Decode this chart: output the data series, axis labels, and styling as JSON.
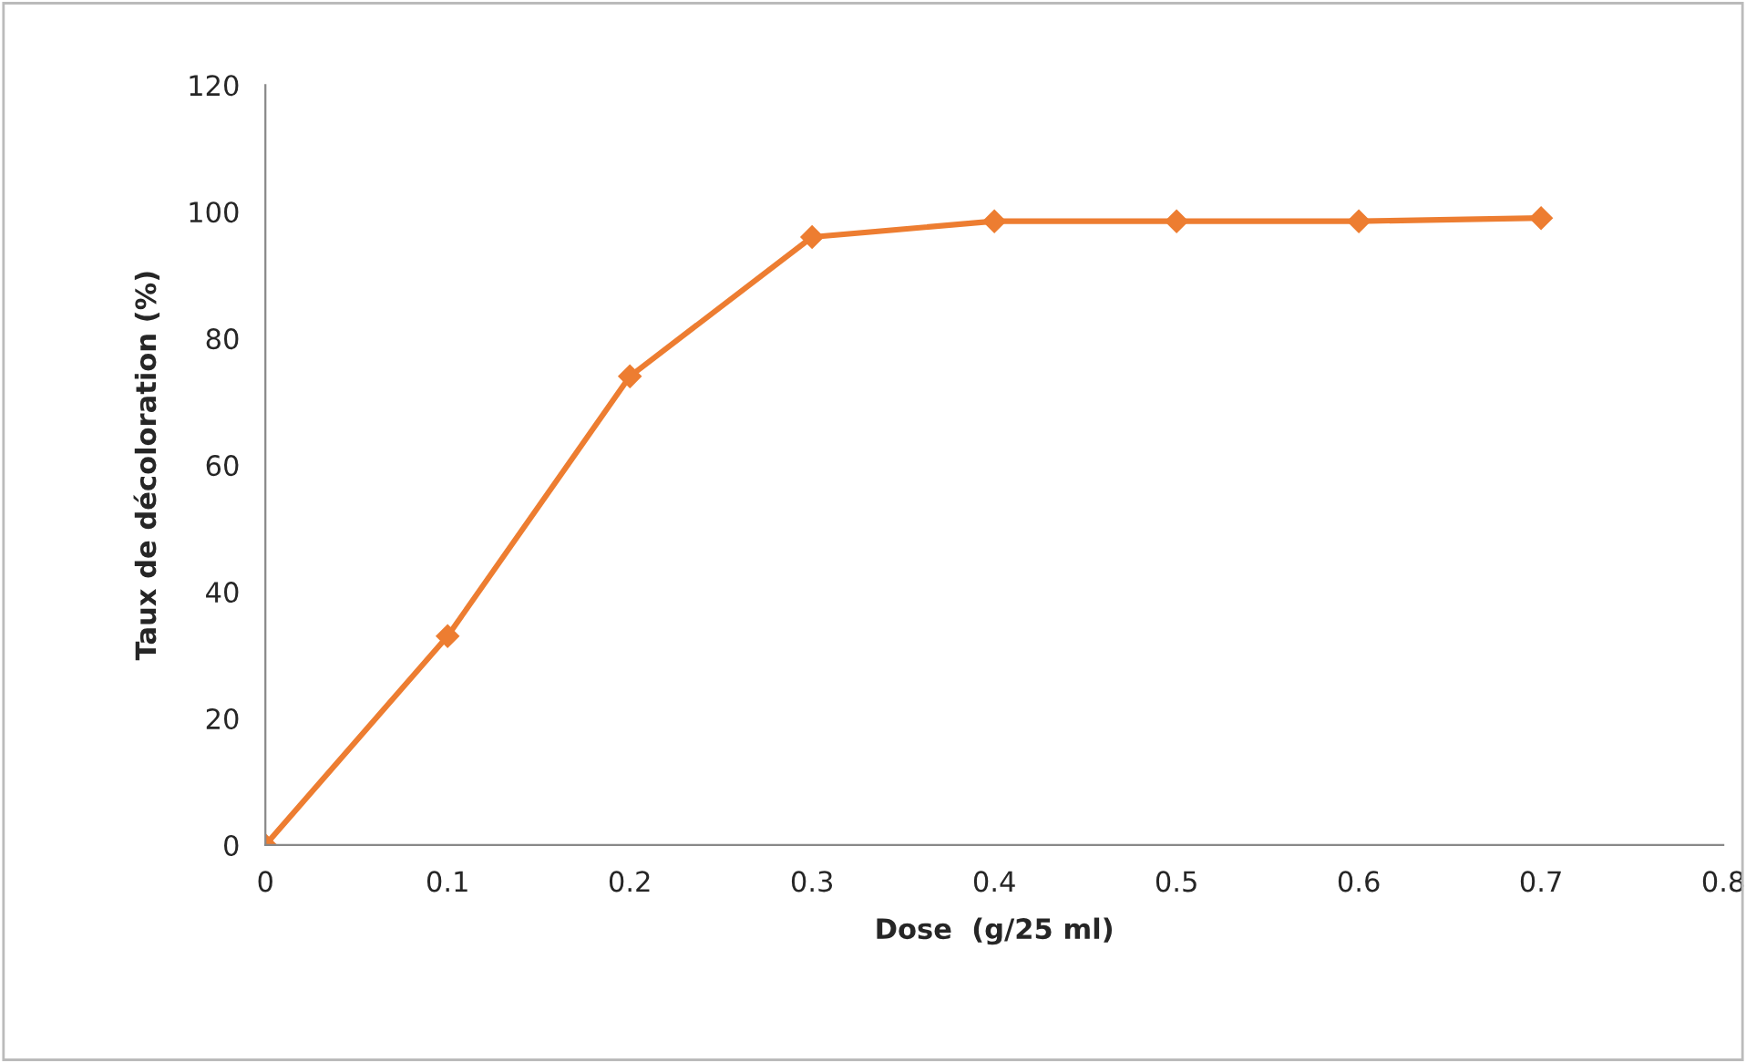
{
  "chart_data": {
    "type": "line",
    "xlabel": "Dose  (g/25 ml)",
    "ylabel": "Taux de décoloration (%)",
    "x": [
      0,
      0.1,
      0.2,
      0.3,
      0.4,
      0.5,
      0.6,
      0.7
    ],
    "series": [
      {
        "color": "#ed7d31",
        "values": [
          0,
          33,
          74,
          96,
          98.5,
          98.5,
          98.5,
          99
        ]
      }
    ],
    "xlim": [
      0,
      0.8
    ],
    "xticks": [
      0,
      0.1,
      0.2,
      0.3,
      0.4,
      0.5,
      0.6,
      0.7,
      0.8
    ],
    "ylim": [
      0,
      120
    ],
    "yticks": [
      0,
      20,
      40,
      60,
      80,
      100,
      120
    ],
    "grid": false,
    "legend": false,
    "marker": "diamond",
    "line_style": "solid"
  }
}
